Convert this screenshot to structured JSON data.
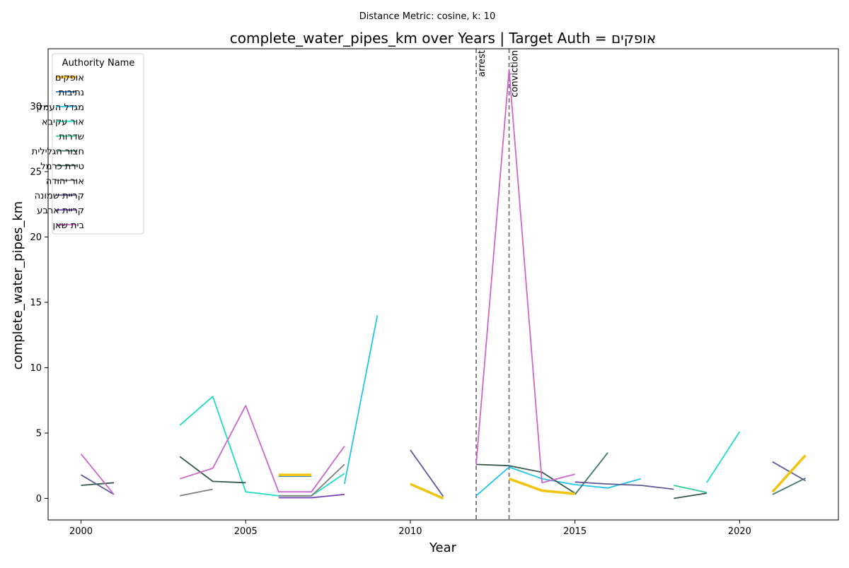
{
  "chart_data": {
    "type": "line",
    "suptitle": "Distance Metric: cosine, k: 10",
    "title": "complete_water_pipes_km over Years | Target Auth = אופקים",
    "xlabel": "Year",
    "ylabel": "complete_water_pipes_km",
    "xlim": [
      1999,
      2023
    ],
    "ylim": [
      -1.65,
      34.4
    ],
    "xticks": [
      "2000",
      "2005",
      "2010",
      "2015",
      "2020"
    ],
    "yticks": [
      "0",
      "5",
      "10",
      "15",
      "20",
      "25",
      "30"
    ],
    "grid": false,
    "legend": {
      "title": "Authority Name",
      "placement": "top-left"
    },
    "vlines": [
      {
        "x": 2012,
        "label": "arrest"
      },
      {
        "x": 2013,
        "label": "conviction"
      }
    ],
    "series": [
      {
        "name": "אופקים",
        "color": "#f1c40f",
        "target": true,
        "segments": [
          [
            [
              2006,
              1.8
            ],
            [
              2007,
              1.8
            ]
          ],
          [
            [
              2010,
              1.1
            ],
            [
              2011,
              0.0
            ]
          ],
          [
            [
              2013,
              1.5
            ],
            [
              2014,
              0.6
            ],
            [
              2015,
              0.35
            ]
          ],
          [
            [
              2021,
              0.5
            ],
            [
              2022,
              3.3
            ]
          ]
        ]
      },
      {
        "name": "נתיבות",
        "color": "#1f78c1",
        "segments": [
          [
            [
              2006,
              1.7
            ],
            [
              2007,
              1.7
            ]
          ]
        ]
      },
      {
        "name": "מגדל העמק",
        "color": "#22c4e8",
        "segments": [
          [
            [
              2008,
              1.1
            ],
            [
              2009,
              14.0
            ]
          ],
          [
            [
              2012,
              0.2
            ],
            [
              2013,
              2.4
            ],
            [
              2014,
              1.5
            ],
            [
              2015,
              1.05
            ],
            [
              2016,
              0.8
            ],
            [
              2017,
              1.5
            ]
          ]
        ]
      },
      {
        "name": "אור עקיבא",
        "color": "#22dcc4",
        "segments": [
          [
            [
              2003,
              5.6
            ],
            [
              2004,
              7.8
            ],
            [
              2005,
              0.5
            ],
            [
              2006,
              0.2
            ],
            [
              2007,
              0.2
            ],
            [
              2008,
              1.9
            ]
          ],
          [
            [
              2019,
              1.2
            ],
            [
              2020,
              5.1
            ]
          ]
        ]
      },
      {
        "name": "שדרות",
        "color": "#2ecc8f",
        "segments": [
          [
            [
              2018,
              1.0
            ],
            [
              2019,
              0.45
            ]
          ]
        ]
      },
      {
        "name": "חצור הגלילית",
        "color": "#3c7d66",
        "segments": [
          [
            [
              2015,
              0.3
            ],
            [
              2016,
              3.5
            ]
          ],
          [
            [
              2021,
              0.3
            ],
            [
              2022,
              1.55
            ]
          ]
        ]
      },
      {
        "name": "טירת כרמל",
        "color": "#35564a",
        "segments": [
          [
            [
              2000,
              1.0
            ],
            [
              2001,
              1.2
            ]
          ],
          [
            [
              2003,
              3.2
            ],
            [
              2004,
              1.3
            ],
            [
              2005,
              1.2
            ]
          ],
          [
            [
              2012,
              2.6
            ],
            [
              2013,
              2.5
            ],
            [
              2014,
              2.0
            ],
            [
              2015,
              0.4
            ]
          ],
          [
            [
              2018,
              0.0
            ],
            [
              2019,
              0.4
            ]
          ]
        ]
      },
      {
        "name": "אור יהודה",
        "color": "#808080",
        "segments": [
          [
            [
              2003,
              0.2
            ],
            [
              2004,
              0.7
            ]
          ],
          [
            [
              2006,
              0.2
            ],
            [
              2007,
              0.2
            ],
            [
              2008,
              2.6
            ]
          ]
        ]
      },
      {
        "name": "קריית שמונה",
        "color": "#5f5a96",
        "segments": [
          [
            [
              2000,
              1.8
            ],
            [
              2001,
              0.3
            ]
          ],
          [
            [
              2010,
              3.7
            ],
            [
              2011,
              0.15
            ]
          ],
          [
            [
              2015,
              1.25
            ],
            [
              2016,
              1.1
            ],
            [
              2017,
              1.0
            ],
            [
              2018,
              0.7
            ]
          ],
          [
            [
              2021,
              2.8
            ],
            [
              2022,
              1.35
            ]
          ]
        ]
      },
      {
        "name": "קריית ארבע",
        "color": "#7040b8",
        "segments": [
          [
            [
              2006,
              0.05
            ],
            [
              2007,
              0.05
            ],
            [
              2008,
              0.3
            ]
          ]
        ]
      },
      {
        "name": "בית שאן",
        "color": "#cc66cc",
        "segments": [
          [
            [
              2000,
              3.4
            ],
            [
              2001,
              0.3
            ]
          ],
          [
            [
              2003,
              1.5
            ],
            [
              2004,
              2.3
            ],
            [
              2005,
              7.1
            ],
            [
              2006,
              0.5
            ],
            [
              2007,
              0.5
            ],
            [
              2008,
              4.0
            ]
          ],
          [
            [
              2012,
              2.6
            ],
            [
              2013,
              32.8
            ],
            [
              2014,
              1.2
            ],
            [
              2015,
              1.85
            ]
          ]
        ]
      }
    ]
  }
}
